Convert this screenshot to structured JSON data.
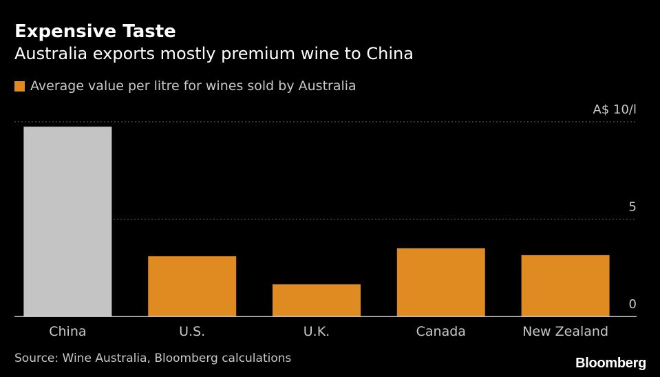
{
  "title": "Expensive Taste",
  "subtitle": "Australia exports mostly premium wine to China",
  "legend": {
    "label": "Average value per litre for wines sold by Australia"
  },
  "colors": {
    "background": "#000000",
    "bar": "#e08a22",
    "highlight": "#c4c4c4",
    "grid": "#6a6a6a",
    "baseline": "#ffffff",
    "text": "#ffffff",
    "muted": "#c9c9c9"
  },
  "chart_data": {
    "type": "bar",
    "title": "Expensive Taste",
    "subtitle": "Australia exports mostly premium wine to China",
    "categories": [
      "China",
      "U.S.",
      "U.K.",
      "Canada",
      "New Zealand"
    ],
    "series": [
      {
        "name": "Average value per litre for wines sold by Australia",
        "values": [
          9.75,
          3.1,
          1.65,
          3.5,
          3.15
        ]
      }
    ],
    "highlight_index": 0,
    "ylim": [
      0,
      10
    ],
    "yticks": [
      0,
      5,
      10
    ],
    "ytick_labels": [
      "0",
      "5",
      "A$ 10/l"
    ],
    "xlabel": "",
    "ylabel": "A$ 10/l",
    "grid": true,
    "legend_position": "top-left"
  },
  "source": "Source: Wine Australia, Bloomberg calculations",
  "brand": "Bloomberg"
}
